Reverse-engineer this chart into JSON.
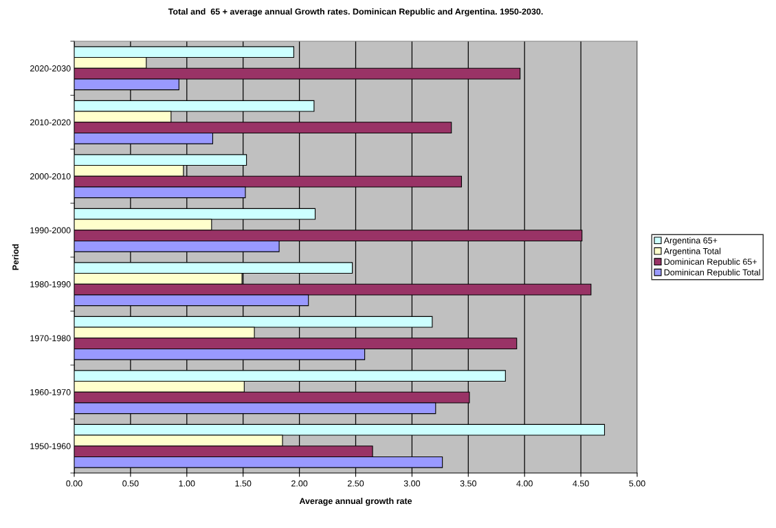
{
  "chart_data": {
    "type": "bar",
    "orientation": "horizontal",
    "title": "Total and  65 + average annual Growth rates. Dominican Republic and Argentina. 1950-2030.",
    "xlabel": "Average annual growth rate",
    "ylabel": "Period",
    "categories": [
      "2020-2030",
      "2010-2020",
      "2000-2010",
      "1990-2000",
      "1980-1990",
      "1970-1980",
      "1960-1970",
      "1950-1960"
    ],
    "series": [
      {
        "name": "Argentina 65+",
        "color": "#ccffff",
        "values": [
          1.95,
          2.13,
          1.53,
          2.14,
          2.47,
          3.18,
          3.83,
          4.71
        ]
      },
      {
        "name": "Argentina Total",
        "color": "#ffffcc",
        "values": [
          0.64,
          0.86,
          0.97,
          1.22,
          1.49,
          1.6,
          1.51,
          1.85
        ]
      },
      {
        "name": "Dominican Republic 65+",
        "color": "#993366",
        "values": [
          3.96,
          3.35,
          3.44,
          4.51,
          4.59,
          3.93,
          3.51,
          2.65
        ]
      },
      {
        "name": "Dominican Republic Total",
        "color": "#9999ff",
        "values": [
          0.93,
          1.23,
          1.52,
          1.82,
          2.08,
          2.58,
          3.21,
          3.27
        ]
      }
    ],
    "xlim": [
      0,
      5
    ],
    "xticks": [
      {
        "value": 0,
        "label": "0.00"
      },
      {
        "value": 0.5,
        "label": "0.50"
      },
      {
        "value": 1,
        "label": "1.00"
      },
      {
        "value": 1.5,
        "label": "1.50"
      },
      {
        "value": 2,
        "label": "2.00"
      },
      {
        "value": 2.5,
        "label": "2.50"
      },
      {
        "value": 3,
        "label": "3.00"
      },
      {
        "value": 3.5,
        "label": "3.50"
      },
      {
        "value": 4,
        "label": "4.00"
      },
      {
        "value": 4.5,
        "label": "4.50"
      },
      {
        "value": 5,
        "label": "5.00"
      }
    ],
    "grid": "x",
    "legend": "right"
  }
}
